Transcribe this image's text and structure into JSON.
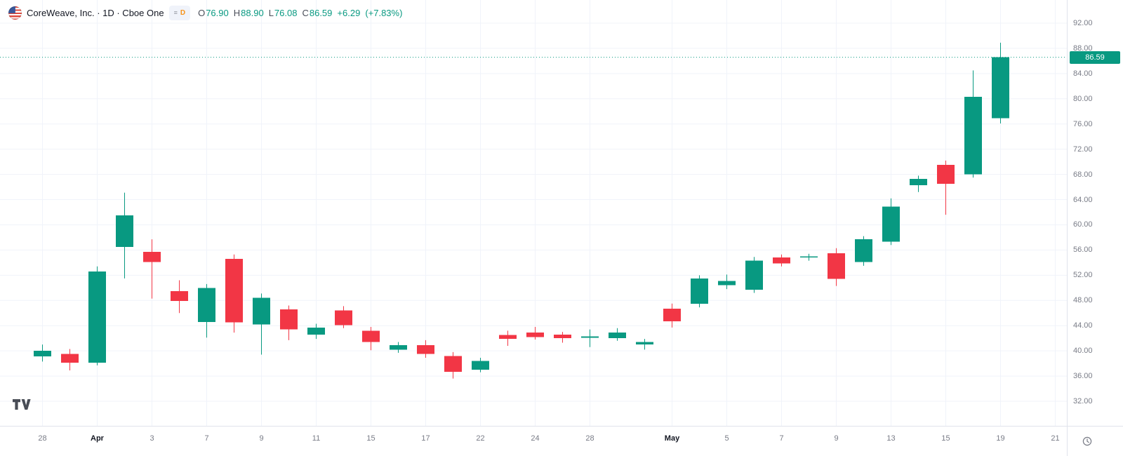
{
  "header": {
    "symbol_title": "CoreWeave, Inc. · 1D · Cboe One",
    "interval_badge": "D",
    "interval_marker_icon": "≡",
    "ohlc": {
      "labels": {
        "open": "O",
        "high": "H",
        "low": "L",
        "close": "C"
      },
      "open": "76.90",
      "high": "88.90",
      "low": "76.08",
      "close": "86.59",
      "change": "+6.29",
      "change_pct": "(+7.83%)"
    }
  },
  "colors": {
    "up": "#089981",
    "down": "#f23645",
    "accent_orange": "#f7931a",
    "axis_text": "#787b86",
    "text": "#131722",
    "grid": "#f0f3fa",
    "axis_border": "#e0e3eb"
  },
  "price_axis": {
    "labels": [
      "92.00",
      "88.00",
      "84.00",
      "80.00",
      "76.00",
      "72.00",
      "68.00",
      "64.00",
      "60.00",
      "56.00",
      "52.00",
      "48.00",
      "44.00",
      "40.00",
      "36.00",
      "32.00"
    ],
    "last_price_badge": "86.59"
  },
  "time_axis": {
    "labels": [
      {
        "text": "28",
        "index": 0
      },
      {
        "text": "Apr",
        "index": 2,
        "major": true
      },
      {
        "text": "3",
        "index": 4
      },
      {
        "text": "7",
        "index": 6
      },
      {
        "text": "9",
        "index": 8
      },
      {
        "text": "11",
        "index": 10
      },
      {
        "text": "15",
        "index": 12
      },
      {
        "text": "17",
        "index": 14
      },
      {
        "text": "22",
        "index": 16
      },
      {
        "text": "24",
        "index": 18
      },
      {
        "text": "28",
        "index": 20
      },
      {
        "text": "May",
        "index": 23,
        "major": true
      },
      {
        "text": "5",
        "index": 25
      },
      {
        "text": "7",
        "index": 27
      },
      {
        "text": "9",
        "index": 29
      },
      {
        "text": "13",
        "index": 31
      },
      {
        "text": "15",
        "index": 33
      },
      {
        "text": "19",
        "index": 35
      },
      {
        "text": "21",
        "index": 37
      }
    ]
  },
  "chart_data": {
    "type": "candlestick",
    "title": "CoreWeave, Inc. daily candlestick chart",
    "symbol": "CoreWeave, Inc.",
    "interval": "1D",
    "exchange": "Cboe One",
    "last_price": 86.59,
    "change": "+6.29",
    "change_pct": "+7.83%",
    "y_range": [
      32,
      92
    ],
    "y_tick_step": 4,
    "grid": true,
    "legend_position": "top-left",
    "candles": [
      {
        "date": "Mar 28",
        "o": 39.1,
        "h": 41.0,
        "l": 38.3,
        "c": 40.0
      },
      {
        "date": "Mar 31",
        "o": 39.5,
        "h": 40.3,
        "l": 36.9,
        "c": 38.1
      },
      {
        "date": "Apr 1",
        "o": 38.1,
        "h": 53.4,
        "l": 37.7,
        "c": 52.6
      },
      {
        "date": "Apr 2",
        "o": 56.5,
        "h": 65.1,
        "l": 51.5,
        "c": 61.5
      },
      {
        "date": "Apr 3",
        "o": 55.7,
        "h": 57.7,
        "l": 48.3,
        "c": 54.1
      },
      {
        "date": "Apr 4",
        "o": 49.5,
        "h": 51.2,
        "l": 46.0,
        "c": 47.9
      },
      {
        "date": "Apr 7",
        "o": 44.6,
        "h": 50.6,
        "l": 42.1,
        "c": 50.0
      },
      {
        "date": "Apr 8",
        "o": 54.6,
        "h": 55.3,
        "l": 42.9,
        "c": 44.5
      },
      {
        "date": "Apr 9",
        "o": 44.2,
        "h": 49.1,
        "l": 39.4,
        "c": 48.4
      },
      {
        "date": "Apr 10",
        "o": 46.6,
        "h": 47.2,
        "l": 41.7,
        "c": 43.4
      },
      {
        "date": "Apr 11",
        "o": 42.6,
        "h": 44.3,
        "l": 41.9,
        "c": 43.7
      },
      {
        "date": "Apr 14",
        "o": 46.4,
        "h": 47.1,
        "l": 43.6,
        "c": 44.1
      },
      {
        "date": "Apr 15",
        "o": 43.2,
        "h": 43.8,
        "l": 40.1,
        "c": 41.4
      },
      {
        "date": "Apr 16",
        "o": 40.2,
        "h": 41.4,
        "l": 39.7,
        "c": 40.9
      },
      {
        "date": "Apr 17",
        "o": 40.9,
        "h": 41.7,
        "l": 38.9,
        "c": 39.5
      },
      {
        "date": "Apr 21",
        "o": 39.2,
        "h": 39.8,
        "l": 35.6,
        "c": 36.7
      },
      {
        "date": "Apr 22",
        "o": 37.0,
        "h": 38.9,
        "l": 36.6,
        "c": 38.4
      },
      {
        "date": "Apr 23",
        "o": 42.5,
        "h": 43.2,
        "l": 40.8,
        "c": 41.9
      },
      {
        "date": "Apr 24",
        "o": 42.9,
        "h": 43.8,
        "l": 41.8,
        "c": 42.2
      },
      {
        "date": "Apr 25",
        "o": 42.6,
        "h": 43.0,
        "l": 41.3,
        "c": 42.0
      },
      {
        "date": "Apr 28",
        "o": 42.1,
        "h": 43.4,
        "l": 40.6,
        "c": 42.3
      },
      {
        "date": "Apr 29",
        "o": 42.0,
        "h": 43.6,
        "l": 41.6,
        "c": 42.9
      },
      {
        "date": "Apr 30",
        "o": 41.0,
        "h": 41.9,
        "l": 40.2,
        "c": 41.4
      },
      {
        "date": "May 1",
        "o": 46.7,
        "h": 47.5,
        "l": 43.7,
        "c": 44.7
      },
      {
        "date": "May 2",
        "o": 47.5,
        "h": 52.0,
        "l": 46.9,
        "c": 51.5
      },
      {
        "date": "May 5",
        "o": 50.4,
        "h": 52.1,
        "l": 49.8,
        "c": 51.1
      },
      {
        "date": "May 6",
        "o": 49.7,
        "h": 54.9,
        "l": 49.2,
        "c": 54.3
      },
      {
        "date": "May 7",
        "o": 54.8,
        "h": 55.3,
        "l": 53.4,
        "c": 53.9
      },
      {
        "date": "May 8",
        "o": 54.8,
        "h": 55.4,
        "l": 54.3,
        "c": 55.0
      },
      {
        "date": "May 9",
        "o": 55.5,
        "h": 56.3,
        "l": 50.3,
        "c": 51.4
      },
      {
        "date": "May 12",
        "o": 54.1,
        "h": 58.2,
        "l": 53.5,
        "c": 57.7
      },
      {
        "date": "May 13",
        "o": 57.3,
        "h": 64.2,
        "l": 56.8,
        "c": 62.9
      },
      {
        "date": "May 14",
        "o": 66.3,
        "h": 67.8,
        "l": 65.2,
        "c": 67.3
      },
      {
        "date": "May 15",
        "o": 69.5,
        "h": 70.2,
        "l": 61.6,
        "c": 66.5
      },
      {
        "date": "May 16",
        "o": 68.0,
        "h": 84.5,
        "l": 67.5,
        "c": 80.3
      },
      {
        "date": "May 19",
        "o": 76.9,
        "h": 88.9,
        "l": 76.08,
        "c": 86.59
      }
    ]
  }
}
